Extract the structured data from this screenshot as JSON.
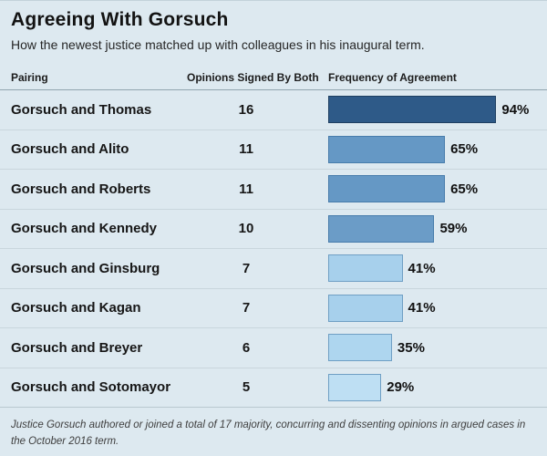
{
  "header": {
    "title": "Agreeing With Gorsuch",
    "subtitle": "How the newest justice matched up with colleagues in his inaugural term."
  },
  "columns": {
    "pairing": "Pairing",
    "opinions": "Opinions Signed By Both",
    "frequency": "Frequency of Agreement"
  },
  "chart_data": {
    "type": "bar",
    "title": "Agreeing With Gorsuch",
    "subtitle": "How the newest justice matched up with colleagues in his inaugural term.",
    "orientation": "horizontal",
    "xlabel": "Frequency of Agreement",
    "xlim": [
      0,
      100
    ],
    "grid": false,
    "legend": "none",
    "categories": [
      "Gorsuch and Thomas",
      "Gorsuch and Alito",
      "Gorsuch and Roberts",
      "Gorsuch and Kennedy",
      "Gorsuch and Ginsburg",
      "Gorsuch and Kagan",
      "Gorsuch and Breyer",
      "Gorsuch and Sotomayor"
    ],
    "series": [
      {
        "name": "Opinions Signed By Both",
        "values": [
          16,
          11,
          11,
          10,
          7,
          7,
          6,
          5
        ]
      },
      {
        "name": "Frequency of Agreement (%)",
        "values": [
          94,
          65,
          65,
          59,
          41,
          41,
          35,
          29
        ]
      }
    ],
    "rows": [
      {
        "pairing": "Gorsuch and Thomas",
        "opinions": "16",
        "pct": 94,
        "pct_label": "94%",
        "fill": "#2e5a88",
        "border": "#1e3f61"
      },
      {
        "pairing": "Gorsuch and Alito",
        "opinions": "11",
        "pct": 65,
        "pct_label": "65%",
        "fill": "#6598c5",
        "border": "#477cab"
      },
      {
        "pairing": "Gorsuch and Roberts",
        "opinions": "11",
        "pct": 65,
        "pct_label": "65%",
        "fill": "#6598c5",
        "border": "#477cab"
      },
      {
        "pairing": "Gorsuch and Kennedy",
        "opinions": "10",
        "pct": 59,
        "pct_label": "59%",
        "fill": "#6b9cc7",
        "border": "#477cab"
      },
      {
        "pairing": "Gorsuch and Ginsburg",
        "opinions": "7",
        "pct": 41,
        "pct_label": "41%",
        "fill": "#a7d0ec",
        "border": "#6f9fc4"
      },
      {
        "pairing": "Gorsuch and Kagan",
        "opinions": "7",
        "pct": 41,
        "pct_label": "41%",
        "fill": "#a7d0ec",
        "border": "#6f9fc4"
      },
      {
        "pairing": "Gorsuch and Breyer",
        "opinions": "6",
        "pct": 35,
        "pct_label": "35%",
        "fill": "#aed6ef",
        "border": "#6f9fc4"
      },
      {
        "pairing": "Gorsuch and Sotomayor",
        "opinions": "5",
        "pct": 29,
        "pct_label": "29%",
        "fill": "#bedff3",
        "border": "#6f9fc4"
      }
    ]
  },
  "footnote": "Justice Gorsuch authored or joined a total of 17 majority, concurring and dissenting opinions in argued cases in the October 2016 term.",
  "colors": {
    "background": "#dde9f0",
    "title_text": "#131313",
    "header_divider": "#90a4af",
    "row_divider": "#c9d6dd",
    "bar_dark": "#2e5a88",
    "bar_medium": "#6598c5",
    "bar_light": "#a7d0ec",
    "bar_lightest": "#bedff3"
  }
}
